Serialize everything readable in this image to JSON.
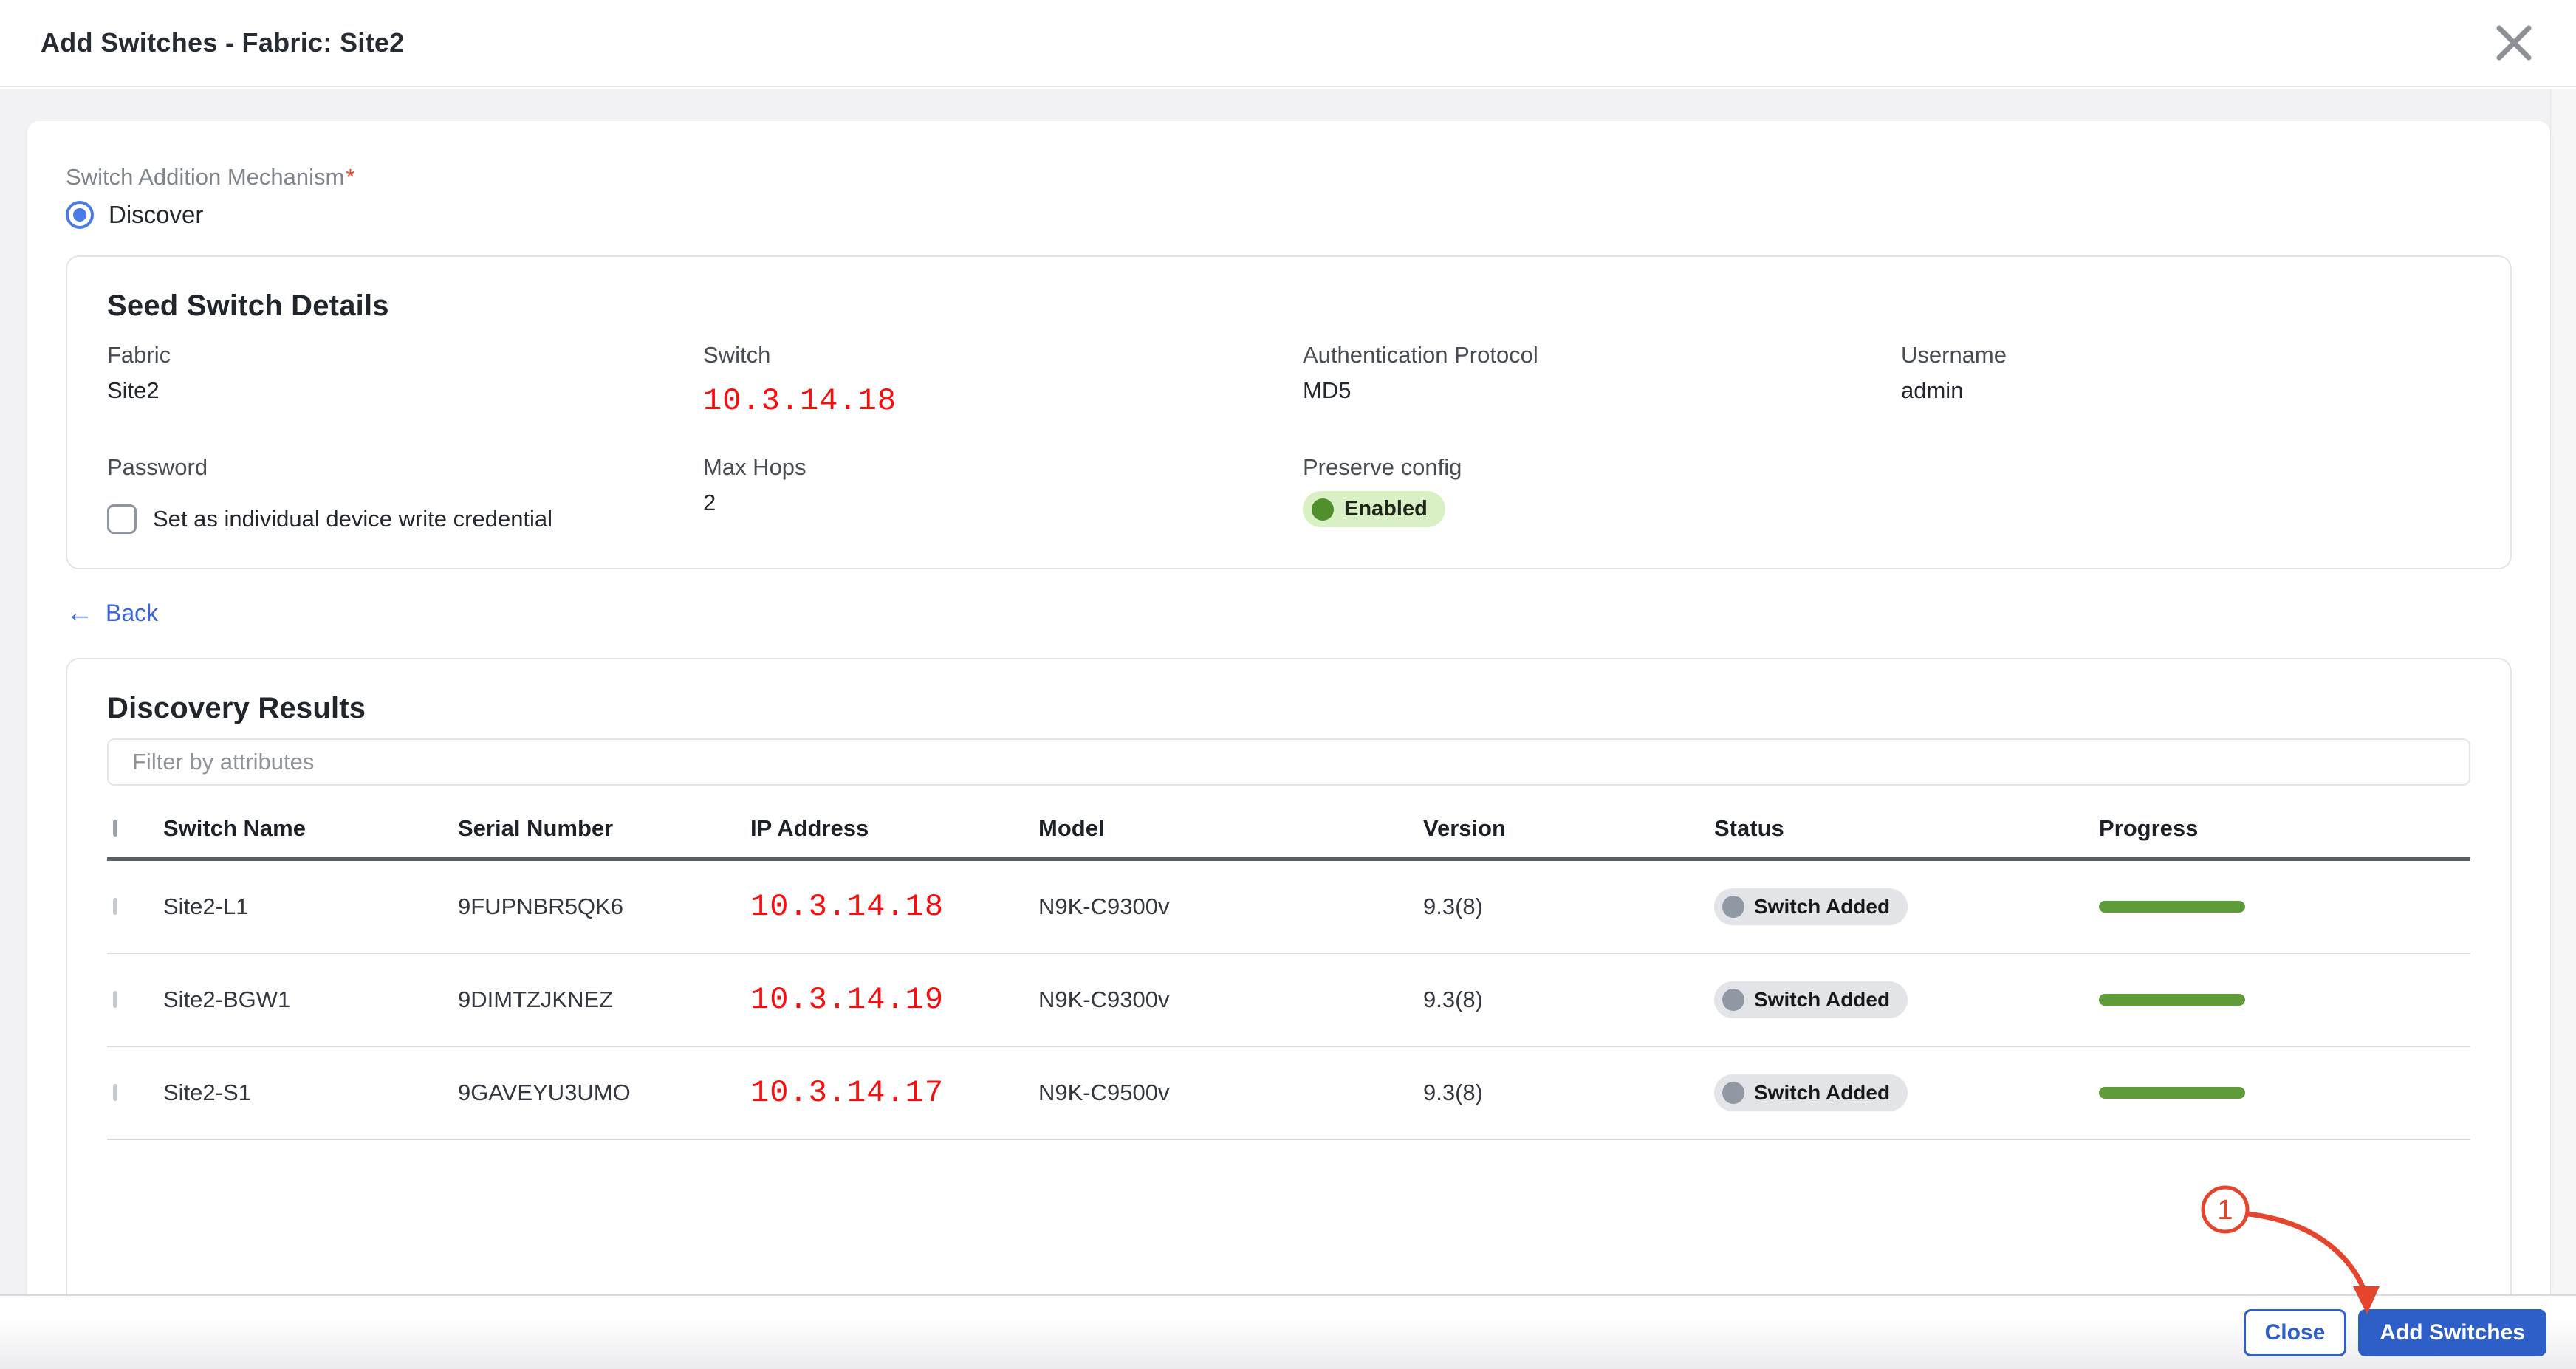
{
  "dialog": {
    "title": "Add Switches - Fabric: Site2"
  },
  "mechanism": {
    "label": "Switch Addition Mechanism",
    "required_mark": "*",
    "option": {
      "label": "Discover",
      "selected": true
    }
  },
  "seed_switch_details": {
    "heading": "Seed Switch Details",
    "fields": [
      {
        "label": "Fabric",
        "value": "Site2"
      },
      {
        "label": "Switch",
        "value": "10.3.14.18"
      },
      {
        "label": "Authentication Protocol",
        "value": "MD5"
      },
      {
        "label": "Username",
        "value": "admin"
      },
      {
        "label": "Password",
        "value": ""
      },
      {
        "label": "Max Hops",
        "value": "2"
      },
      {
        "label": "Preserve config",
        "value": "Enabled"
      }
    ],
    "write_credential_checkbox": {
      "label": "Set as individual device write credential",
      "checked": false
    }
  },
  "back_link": {
    "label": "Back"
  },
  "discovery_results": {
    "heading": "Discovery Results",
    "filter_placeholder": "Filter by attributes",
    "table": {
      "columns": [
        "Switch Name",
        "Serial Number",
        "IP Address",
        "Model",
        "Version",
        "Status",
        "Progress"
      ],
      "rows": [
        {
          "checked": false,
          "switch_name": "Site2-L1",
          "serial_number": "9FUPNBR5QK6",
          "ip_address": "10.3.14.18",
          "model": "N9K-C9300v",
          "version": "9.3(8)",
          "status": "Switch Added",
          "progress_percent": 100
        },
        {
          "checked": false,
          "switch_name": "Site2-BGW1",
          "serial_number": "9DIMTZJKNEZ",
          "ip_address": "10.3.14.19",
          "model": "N9K-C9300v",
          "version": "9.3(8)",
          "status": "Switch Added",
          "progress_percent": 100
        },
        {
          "checked": false,
          "switch_name": "Site2-S1",
          "serial_number": "9GAVEYU3UMO",
          "ip_address": "10.3.14.17",
          "model": "N9K-C9500v",
          "version": "9.3(8)",
          "status": "Switch Added",
          "progress_percent": 100
        }
      ]
    }
  },
  "footer": {
    "close_label": "Close",
    "add_switches_label": "Add Switches"
  },
  "annotation": {
    "step_number": "1"
  },
  "colors": {
    "accent-blue": "#2d5fc6",
    "link-blue": "#3c63d8",
    "radio-blue": "#4a7ce8",
    "ip-red": "#f60d0d",
    "annotation-red": "#e5452c",
    "progress-green": "#5e9c3a",
    "badge-green-bg": "#d9f0c5",
    "badge-green-dot": "#4f8f2c",
    "body-gray": "#f2f2f4"
  }
}
